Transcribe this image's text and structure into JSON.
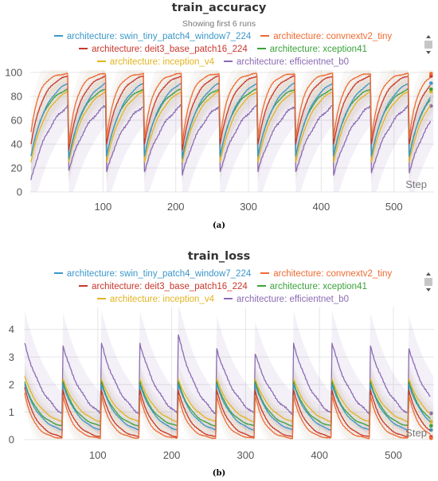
{
  "figure": {
    "captions": [
      "(a)",
      "(b)"
    ]
  },
  "chart_data": [
    {
      "type": "line",
      "title": "train_accuracy",
      "subtitle": "Showing first 6 runs",
      "xlabel": "Step",
      "ylabel": "",
      "xlim": [
        0,
        555
      ],
      "ylim": [
        0,
        102
      ],
      "xticks": [
        100,
        200,
        300,
        400,
        500
      ],
      "yticks": [
        0,
        20,
        40,
        60,
        80,
        100
      ],
      "grid": true,
      "legend_position": "top",
      "cycle_length": 52,
      "cycles": 11,
      "series": [
        {
          "name": "architecture: swin_tiny_patch4_window7_224",
          "color": "#3b97c9",
          "start": [
            30,
            28,
            30,
            30,
            28,
            30,
            30,
            30,
            30,
            30,
            30
          ],
          "end": 91,
          "k": 2.2
        },
        {
          "name": "architecture: convnextv2_tiny",
          "color": "#ef6a32",
          "start": [
            50,
            40,
            45,
            45,
            40,
            45,
            45,
            45,
            45,
            45,
            45
          ],
          "end": 99,
          "k": 4.5
        },
        {
          "name": "architecture: deit3_base_patch16_224",
          "color": "#c8372d",
          "start": [
            40,
            35,
            40,
            40,
            35,
            40,
            40,
            40,
            40,
            40,
            40
          ],
          "end": 97,
          "k": 3.0
        },
        {
          "name": "architecture: xception41",
          "color": "#3aa33a",
          "start": [
            30,
            28,
            30,
            30,
            28,
            30,
            30,
            30,
            30,
            30,
            30
          ],
          "end": 86,
          "k": 2.6
        },
        {
          "name": "architecture: inception_v4",
          "color": "#e2b420",
          "start": [
            25,
            25,
            25,
            25,
            25,
            25,
            25,
            25,
            25,
            25,
            25
          ],
          "end": 84,
          "k": 2.2
        },
        {
          "name": "architecture: efficientnet_b0",
          "color": "#8b6bb3",
          "start": [
            10,
            18,
            17,
            17,
            14,
            17,
            17,
            17,
            14,
            16,
            16
          ],
          "end": 72,
          "k": 1.6
        }
      ]
    },
    {
      "type": "line",
      "title": "train_loss",
      "xlabel": "Step",
      "ylabel": "",
      "xlim": [
        0,
        555
      ],
      "ylim": [
        0,
        4.8
      ],
      "xticks": [
        100,
        200,
        300,
        400,
        500
      ],
      "yticks": [
        0,
        1,
        2,
        3,
        4
      ],
      "grid": true,
      "legend_position": "top",
      "cycle_length": 52,
      "cycles": 11,
      "series": [
        {
          "name": "architecture: swin_tiny_patch4_window7_224",
          "color": "#3b97c9",
          "start": [
            2.0,
            2.0,
            2.0,
            2.0,
            2.0,
            2.0,
            2.0,
            2.0,
            2.0,
            2.0,
            2.0
          ],
          "end": 0.35,
          "k": 2.3
        },
        {
          "name": "architecture: convnextv2_tiny",
          "color": "#ef6a32",
          "start": [
            1.7,
            1.6,
            1.6,
            1.6,
            1.6,
            1.6,
            1.6,
            1.6,
            1.6,
            1.6,
            1.6
          ],
          "end": 0.05,
          "k": 3.8
        },
        {
          "name": "architecture: deit3_base_patch16_224",
          "color": "#c8372d",
          "start": [
            1.9,
            1.8,
            1.8,
            1.8,
            1.8,
            1.8,
            1.8,
            1.8,
            1.8,
            1.8,
            1.8
          ],
          "end": 0.1,
          "k": 3.0
        },
        {
          "name": "architecture: xception41",
          "color": "#3aa33a",
          "start": [
            2.1,
            2.1,
            2.1,
            2.1,
            2.1,
            2.1,
            2.1,
            2.1,
            2.1,
            2.1,
            2.1
          ],
          "end": 0.5,
          "k": 2.6
        },
        {
          "name": "architecture: inception_v4",
          "color": "#e2b420",
          "start": [
            2.3,
            2.2,
            2.2,
            2.2,
            2.2,
            2.2,
            2.2,
            2.2,
            2.2,
            2.2,
            2.2
          ],
          "end": 0.65,
          "k": 2.2
        },
        {
          "name": "architecture: efficientnet_b0",
          "color": "#8b6bb3",
          "start": [
            3.5,
            3.4,
            3.5,
            3.5,
            3.8,
            3.3,
            3.1,
            3.5,
            3.5,
            3.4,
            3.3
          ],
          "end": 0.95,
          "k": 1.6
        }
      ]
    }
  ]
}
